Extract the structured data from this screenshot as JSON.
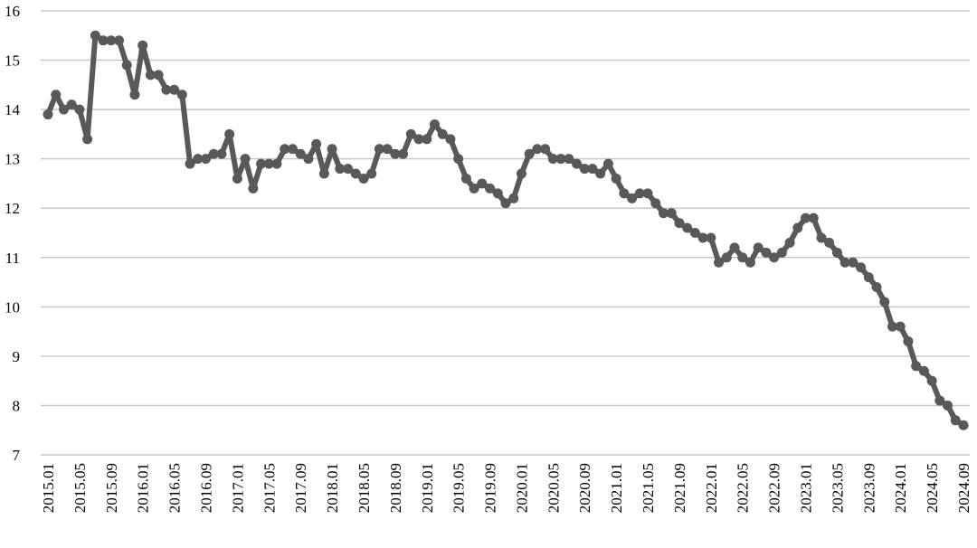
{
  "chart_data": {
    "type": "line",
    "categories": [
      "2015.01",
      null,
      null,
      null,
      "2015.05",
      null,
      null,
      null,
      "2015.09",
      null,
      null,
      null,
      "2016.01",
      null,
      null,
      null,
      "2016.05",
      null,
      null,
      null,
      "2016.09",
      null,
      null,
      null,
      "2017.01",
      null,
      null,
      null,
      "2017.05",
      null,
      null,
      null,
      "2017.09",
      null,
      null,
      null,
      "2018.01",
      null,
      null,
      null,
      "2018.05",
      null,
      null,
      null,
      "2018.09",
      null,
      null,
      null,
      "2019.01",
      null,
      null,
      null,
      "2019.05",
      null,
      null,
      null,
      "2019.09",
      null,
      null,
      null,
      "2020.01",
      null,
      null,
      null,
      "2020.05",
      null,
      null,
      null,
      "2020.09",
      null,
      null,
      null,
      "2021.01",
      null,
      null,
      null,
      "2021.05",
      null,
      null,
      null,
      "2021.09",
      null,
      null,
      null,
      "2022.01",
      null,
      null,
      null,
      "2022.05",
      null,
      null,
      null,
      "2022.09",
      null,
      null,
      null,
      "2023.01",
      null,
      null,
      null,
      "2023.05",
      null,
      null,
      null,
      "2023.09",
      null,
      null,
      null,
      "2024.01",
      null,
      null,
      null,
      "2024.05",
      null,
      null,
      null,
      "2024.09"
    ],
    "series": [
      {
        "color": "#595959",
        "values": [
          13.9,
          14.3,
          14.0,
          14.1,
          14.0,
          13.4,
          15.5,
          15.4,
          15.4,
          15.4,
          14.9,
          14.3,
          15.3,
          14.7,
          14.7,
          14.4,
          14.4,
          14.3,
          12.9,
          13.0,
          13.0,
          13.1,
          13.1,
          13.5,
          12.6,
          13.0,
          12.4,
          12.9,
          12.9,
          12.9,
          13.2,
          13.2,
          13.1,
          13.0,
          13.3,
          12.7,
          13.2,
          12.8,
          12.8,
          12.7,
          12.6,
          12.7,
          13.2,
          13.2,
          13.1,
          13.1,
          13.5,
          13.4,
          13.4,
          13.7,
          13.5,
          13.4,
          13.0,
          12.6,
          12.4,
          12.5,
          12.4,
          12.3,
          12.1,
          12.2,
          12.7,
          13.1,
          13.2,
          13.2,
          13.0,
          13.0,
          13.0,
          12.9,
          12.8,
          12.8,
          12.7,
          12.9,
          12.6,
          12.3,
          12.2,
          12.3,
          12.3,
          12.1,
          11.9,
          11.9,
          11.7,
          11.6,
          11.5,
          11.4,
          11.4,
          10.9,
          11.0,
          11.2,
          11.0,
          10.9,
          11.2,
          11.1,
          11.0,
          11.1,
          11.3,
          11.6,
          11.8,
          11.8,
          11.4,
          11.3,
          11.1,
          10.9,
          10.9,
          10.8,
          10.6,
          10.4,
          10.1,
          9.6,
          9.6,
          9.3,
          8.8,
          8.7,
          8.5,
          8.1,
          8.0,
          7.7,
          7.6
        ]
      }
    ],
    "ylim": [
      7,
      16
    ],
    "yticks": [
      7,
      8,
      9,
      10,
      11,
      12,
      13,
      14,
      15,
      16
    ],
    "grid": true
  }
}
